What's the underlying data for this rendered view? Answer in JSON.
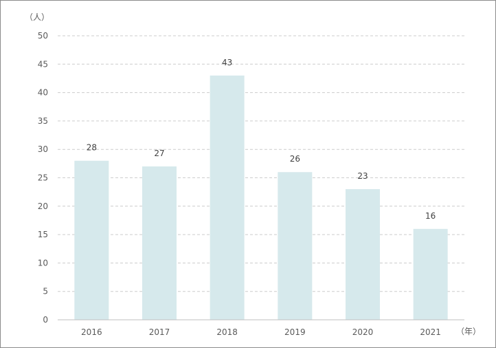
{
  "chart_data": {
    "type": "bar",
    "title": "",
    "xlabel": "",
    "ylabel": "",
    "y_unit": "（人）",
    "x_unit": "（年）",
    "categories": [
      "2016",
      "2017",
      "2018",
      "2019",
      "2020",
      "2021"
    ],
    "values": [
      28,
      27,
      43,
      26,
      23,
      16
    ],
    "ylim": [
      0,
      50
    ],
    "yticks": [
      0,
      5,
      10,
      15,
      20,
      25,
      30,
      35,
      40,
      45,
      50
    ],
    "grid": true,
    "legend": "none",
    "data_labels": true,
    "colors": {
      "bar": "#d6e9ec",
      "grid": "#cccccc",
      "axis": "#bfbfbf",
      "text": "#595959"
    }
  }
}
